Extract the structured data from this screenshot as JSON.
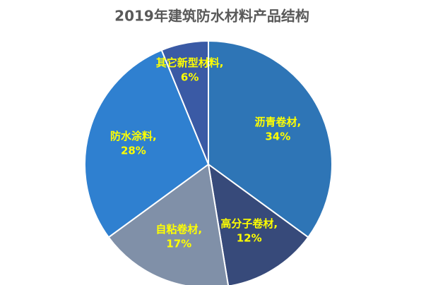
{
  "chart_data": {
    "type": "pie",
    "title": "2019年建筑防水材料产品结构",
    "categories": [
      "沥青卷材",
      "高分子卷材",
      "自粘卷材",
      "防水涂料",
      "其它新型材料"
    ],
    "label_separator": ",",
    "values": [
      34,
      12,
      17,
      28,
      6
    ],
    "value_labels": [
      "34%",
      "12%",
      "17%",
      "28%",
      "6%"
    ],
    "colors": [
      "#2e75b6",
      "#374a7a",
      "#8090a8",
      "#2f80d0",
      "#3a5aa5"
    ],
    "label_color": "#ffff00"
  }
}
